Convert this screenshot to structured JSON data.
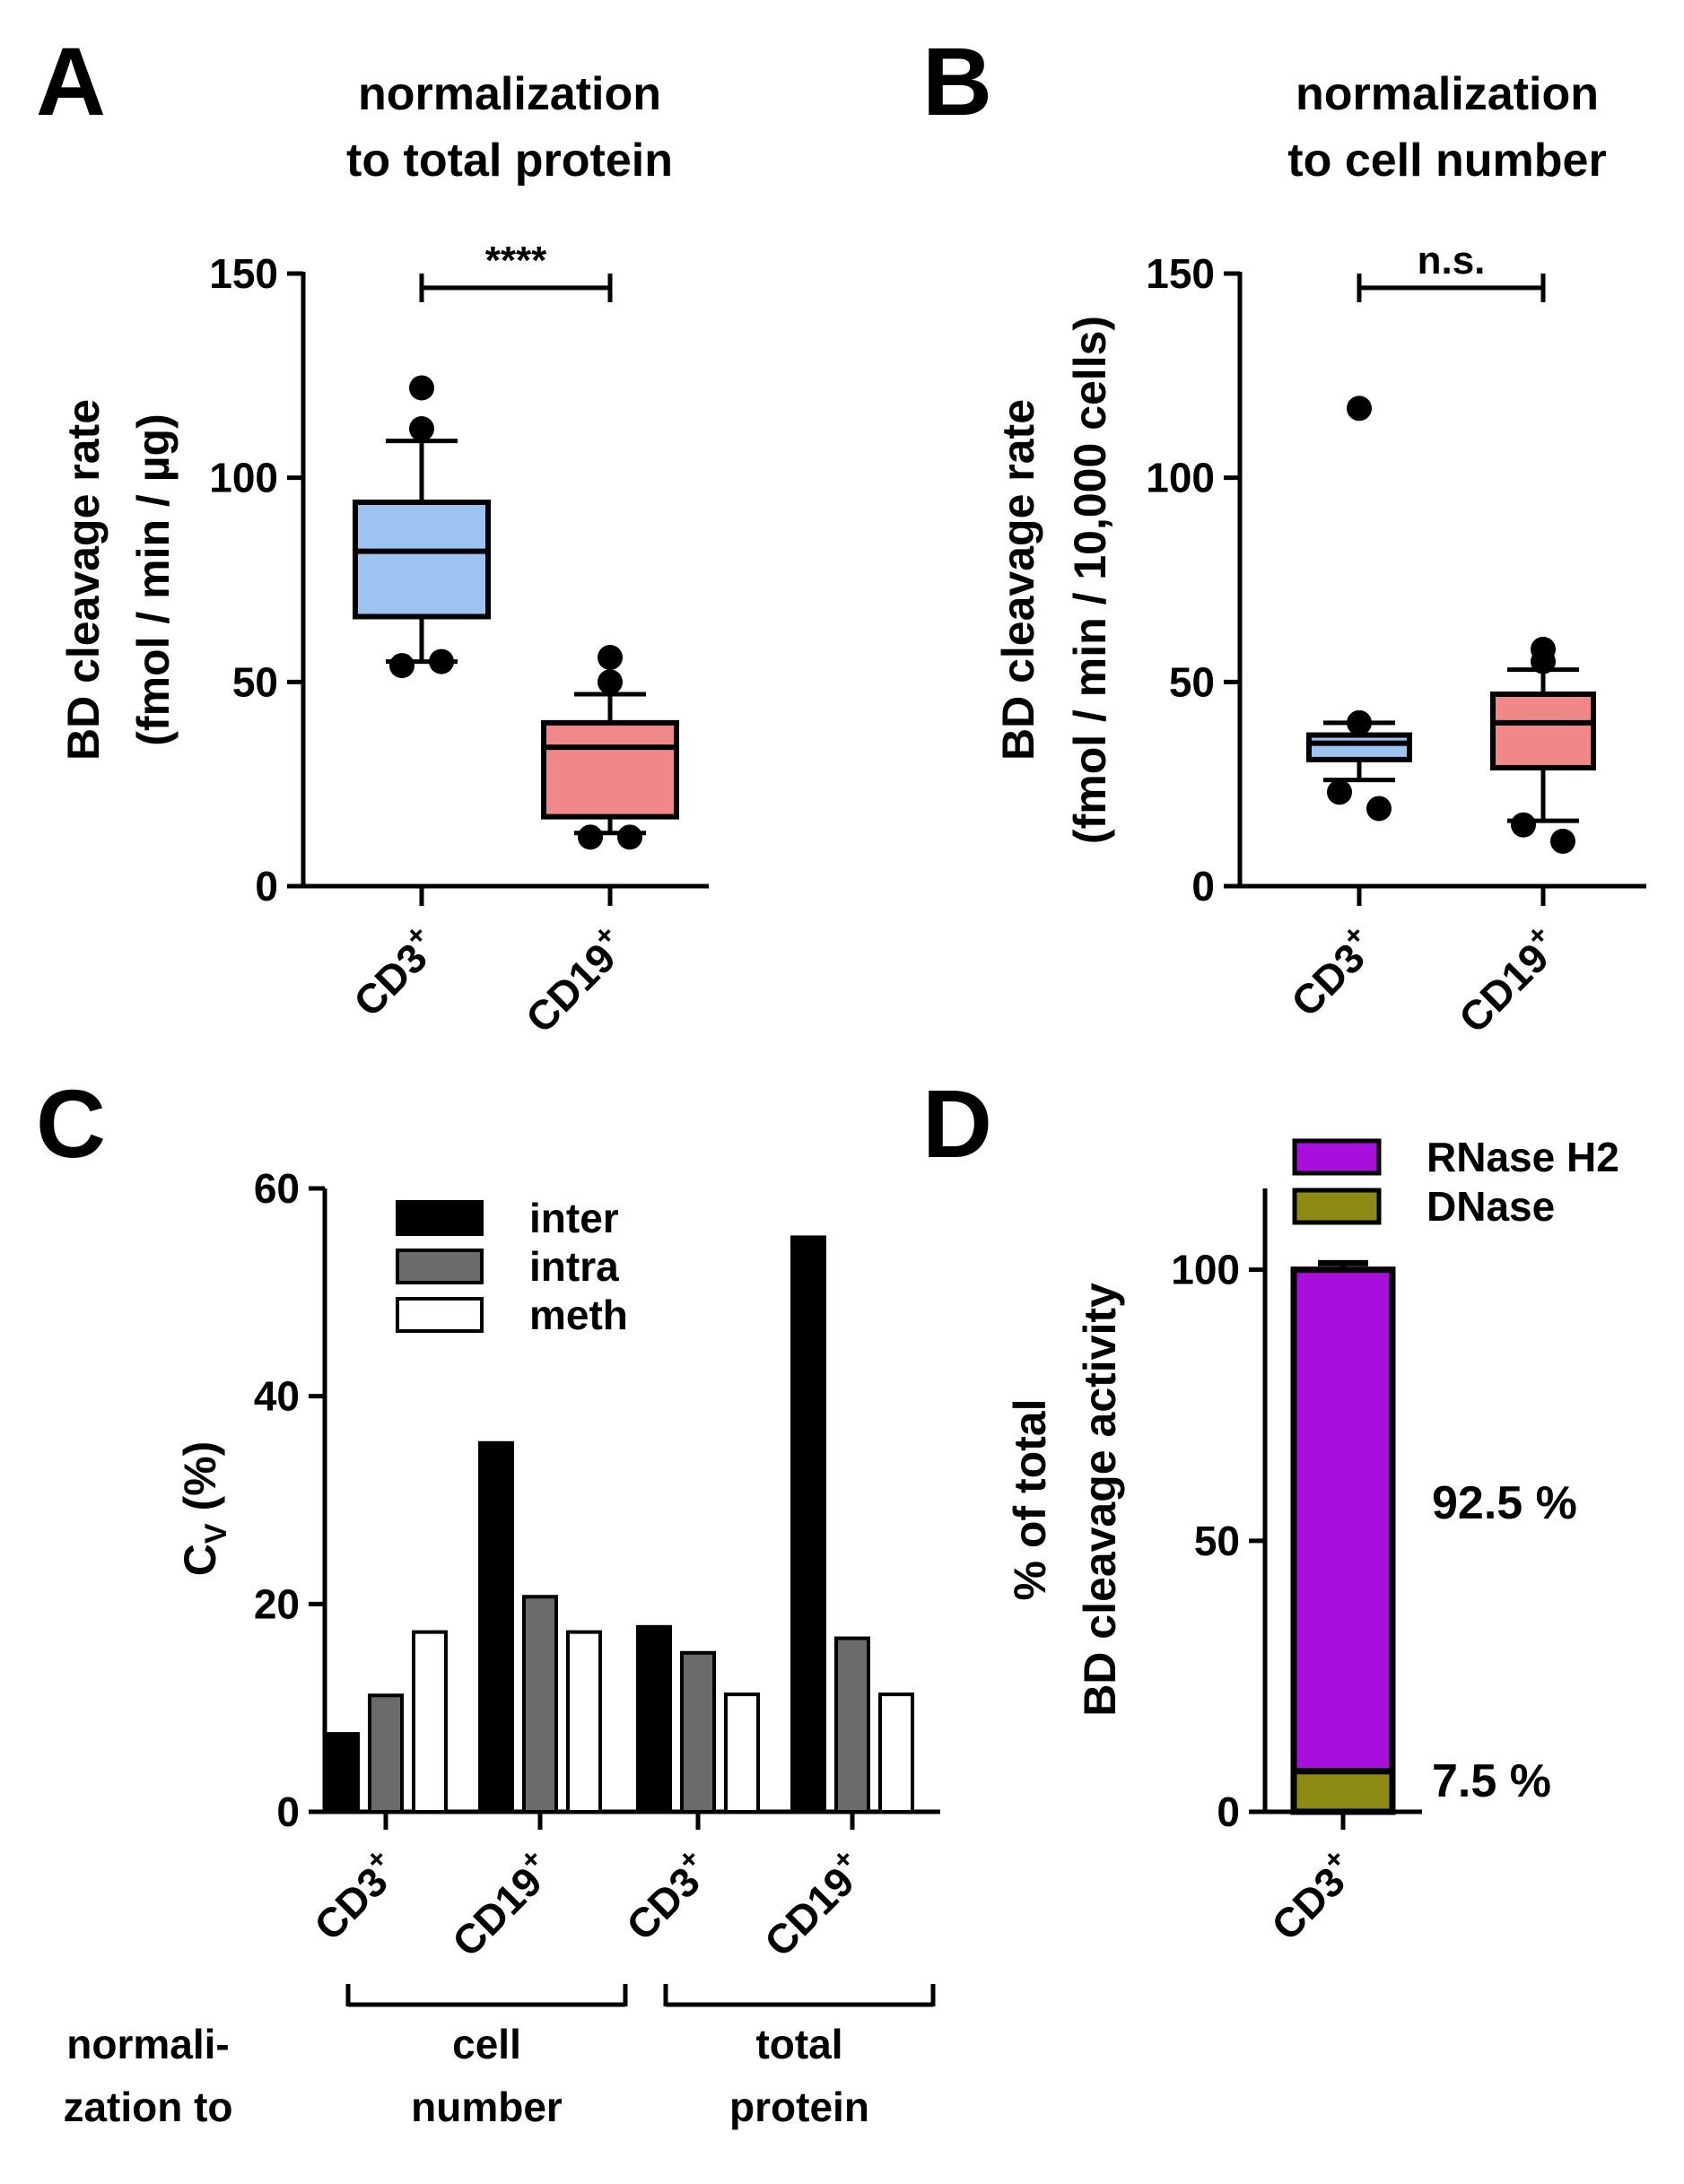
{
  "chart_data": [
    {
      "panel": "A",
      "type": "box",
      "title": "normalization to total protein",
      "title_lines": [
        "normalization",
        "to total protein"
      ],
      "ylabel_lines": [
        "BD cleavage rate",
        "(fmol / min / µg)"
      ],
      "ylim": [
        0,
        150
      ],
      "yticks": [
        0,
        50,
        100,
        150
      ],
      "categories": [
        "CD3",
        "CD19"
      ],
      "category_superscript": "+",
      "series": [
        {
          "name": "CD3",
          "color": "#9dc3f3",
          "q1": 66,
          "median": 82,
          "q3": 94,
          "whisker_low": 55,
          "whisker_high": 109,
          "outliers": [
            122,
            112,
            54,
            55
          ]
        },
        {
          "name": "CD19",
          "color": "#f08888",
          "q1": 17,
          "median": 34,
          "q3": 40,
          "whisker_low": 13,
          "whisker_high": 47,
          "outliers": [
            56,
            50,
            12,
            12
          ]
        }
      ],
      "significance": "****"
    },
    {
      "panel": "B",
      "type": "box",
      "title": "normalization to cell number",
      "title_lines": [
        "normalization",
        "to cell number"
      ],
      "ylabel_lines": [
        "BD cleavage rate",
        "(fmol / min / 10,000 cells)"
      ],
      "ylim": [
        0,
        150
      ],
      "yticks": [
        0,
        50,
        100,
        150
      ],
      "categories": [
        "CD3",
        "CD19"
      ],
      "category_superscript": "+",
      "series": [
        {
          "name": "CD3",
          "color": "#9dc3f3",
          "q1": 31,
          "median": 35,
          "q3": 37,
          "whisker_low": 26,
          "whisker_high": 40,
          "outliers": [
            117,
            40,
            23,
            19
          ]
        },
        {
          "name": "CD19",
          "color": "#f08888",
          "q1": 29,
          "median": 40,
          "q3": 47,
          "whisker_low": 16,
          "whisker_high": 53,
          "outliers": [
            58,
            55,
            15,
            11
          ]
        }
      ],
      "significance": "n.s."
    },
    {
      "panel": "C",
      "type": "bar",
      "ylabel": "C",
      "ylabel_sub": "V",
      "ylabel_suffix": " (%)",
      "ylim": [
        0,
        60
      ],
      "yticks": [
        0,
        20,
        40,
        60
      ],
      "categories": [
        "CD3",
        "CD19",
        "CD3",
        "CD19"
      ],
      "category_superscript": "+",
      "groups": [
        {
          "label_lines": [
            "cell",
            "number"
          ]
        },
        {
          "label_lines": [
            "total",
            "protein"
          ]
        }
      ],
      "row_label_lines": [
        "normali-",
        "zation to"
      ],
      "series": [
        {
          "name": "inter",
          "color": "#000000",
          "values": [
            7.5,
            35.5,
            17.8,
            55.3
          ]
        },
        {
          "name": "intra",
          "color": "#6b6b6b",
          "values": [
            11.2,
            20.7,
            15.3,
            16.7
          ]
        },
        {
          "name": "meth",
          "color": "#ffffff",
          "values": [
            17.3,
            17.3,
            11.3,
            11.3
          ]
        }
      ]
    },
    {
      "panel": "D",
      "type": "stacked_bar",
      "ylabel_lines": [
        "% of total",
        "BD cleavage activity"
      ],
      "ylim": [
        0,
        115
      ],
      "yticks": [
        0,
        50,
        100
      ],
      "categories": [
        "CD3"
      ],
      "category_superscript": "+",
      "series": [
        {
          "name": "DNase",
          "color": "#8d8a14",
          "values": [
            7.5
          ],
          "error": 1.2,
          "label": "7.5 %"
        },
        {
          "name": "RNase H2",
          "color": "#a80fdc",
          "values": [
            92.5
          ],
          "error": 1.2,
          "label": "92.5 %"
        }
      ],
      "legend_order": [
        "RNase H2",
        "DNase"
      ]
    }
  ]
}
